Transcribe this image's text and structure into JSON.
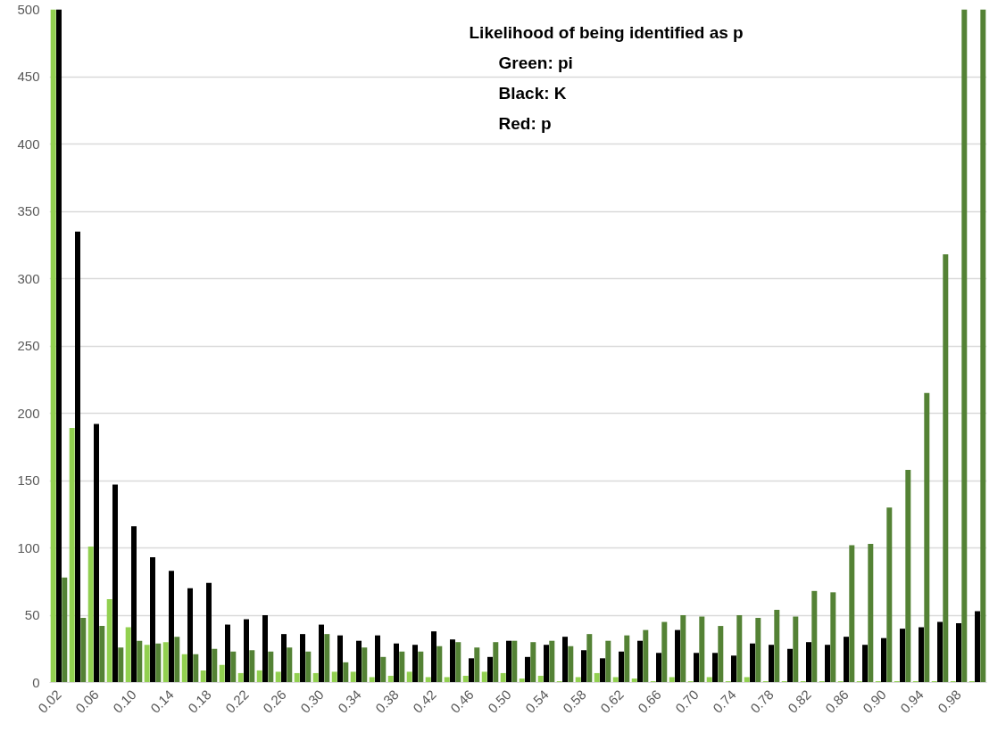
{
  "chart_data": {
    "type": "bar",
    "categories": [
      "0.02",
      null,
      "0.06",
      null,
      "0.10",
      null,
      "0.14",
      null,
      "0.18",
      null,
      "0.22",
      null,
      "0.26",
      null,
      "0.30",
      null,
      "0.34",
      null,
      "0.38",
      null,
      "0.42",
      null,
      "0.46",
      null,
      "0.50",
      null,
      "0.54",
      null,
      "0.58",
      null,
      "0.62",
      null,
      "0.66",
      null,
      "0.70",
      null,
      "0.74",
      null,
      "0.78",
      null,
      "0.82",
      null,
      "0.86",
      null,
      "0.90",
      null,
      "0.94",
      null,
      "0.98",
      null
    ],
    "series": [
      {
        "color": "#92d050",
        "values": [
          500,
          189,
          101,
          62,
          41,
          28,
          30,
          21,
          9,
          13,
          7,
          9,
          8,
          7,
          7,
          8,
          8,
          4,
          5,
          8,
          4,
          4,
          5,
          8,
          7,
          3,
          5,
          1,
          4,
          7,
          4,
          3,
          1,
          4,
          1,
          4,
          1,
          4,
          1,
          1,
          1,
          1,
          1,
          1,
          1,
          1,
          1,
          1,
          1,
          1
        ]
      },
      {
        "color": "#000000",
        "values": [
          500,
          335,
          192,
          147,
          116,
          93,
          83,
          70,
          74,
          43,
          47,
          50,
          36,
          36,
          43,
          35,
          31,
          35,
          29,
          28,
          38,
          32,
          18,
          19,
          31,
          19,
          28,
          34,
          24,
          18,
          23,
          31,
          22,
          39,
          22,
          22,
          20,
          29,
          28,
          25,
          30,
          28,
          34,
          28,
          33,
          40,
          41,
          45,
          44,
          53
        ]
      },
      {
        "color": "#548235",
        "values": [
          78,
          48,
          42,
          26,
          31,
          29,
          34,
          21,
          25,
          23,
          24,
          23,
          26,
          23,
          36,
          15,
          26,
          19,
          23,
          23,
          27,
          30,
          26,
          30,
          31,
          30,
          31,
          27,
          36,
          31,
          35,
          39,
          45,
          50,
          49,
          42,
          50,
          48,
          54,
          49,
          68,
          67,
          102,
          103,
          130,
          158,
          215,
          318,
          500,
          500
        ]
      }
    ],
    "ylim": [
      0,
      500
    ],
    "yticks": [
      0,
      50,
      100,
      150,
      200,
      250,
      300,
      350,
      400,
      450,
      500
    ],
    "grid": "y",
    "annotations": [
      "Likelihood of being identified as p",
      "Green: pi",
      "Black: K",
      "Red: p"
    ]
  }
}
